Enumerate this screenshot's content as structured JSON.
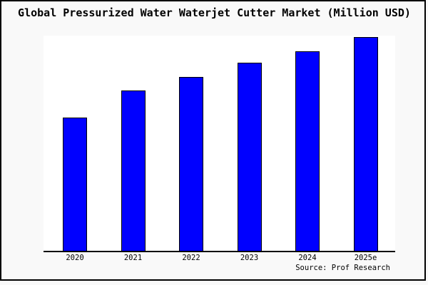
{
  "title": "Global Pressurized Water Waterjet Cutter Market (Million USD)",
  "source": "Source: Prof Research",
  "colors": {
    "figure_bg": "#f9f9f9",
    "plot_bg": "#ffffff",
    "bar_fill": "#0000ff",
    "bar_border": "#000000",
    "axis_line": "#000000",
    "frame_border": "#000000",
    "text": "#000000"
  },
  "chart_data": {
    "type": "bar",
    "title": "Global Pressurized Water Waterjet Cutter Market (Million USD)",
    "categories": [
      "2020",
      "2021",
      "2022",
      "2023",
      "2024",
      "2025e"
    ],
    "values": [
      62.5,
      75,
      81.5,
      88,
      93.5,
      100
    ],
    "value_note": "relative units estimated from bar heights, 2025e = 100 (no numeric y-axis shown)",
    "xlabel": "",
    "ylabel": "",
    "ylim": [
      0,
      100.7
    ],
    "grid": false,
    "legend": false,
    "source": "Source: Prof Research"
  }
}
